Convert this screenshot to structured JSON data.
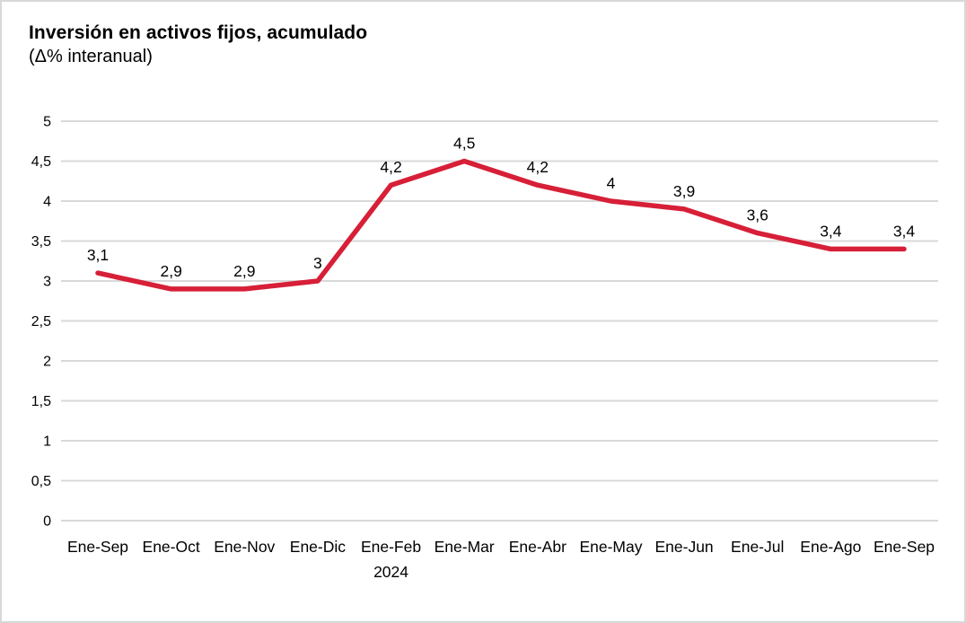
{
  "page": {
    "background_color": "#ffffff",
    "frame_border_color": "#d8d8d8"
  },
  "chart_data": {
    "type": "line",
    "title": "Inversión en activos fijos, acumulado",
    "subtitle": "(Δ% interanual)",
    "categories": [
      "Ene-Sep",
      "Ene-Oct",
      "Ene-Nov",
      "Ene-Dic",
      "Ene-Feb",
      "Ene-Mar",
      "Ene-Abr",
      "Ene-May",
      "Ene-Jun",
      "Ene-Jul",
      "Ene-Ago",
      "Ene-Sep"
    ],
    "values": [
      3.1,
      2.9,
      2.9,
      3.0,
      4.2,
      4.5,
      4.2,
      4.0,
      3.9,
      3.6,
      3.4,
      3.4
    ],
    "point_labels": [
      "3,1",
      "2,9",
      "2,9",
      "3",
      "4,2",
      "4,5",
      "4,2",
      "4",
      "3,9",
      "3,6",
      "3,4",
      "3,4"
    ],
    "x_axis_year_label": "2024",
    "year_label_category_index": 4,
    "y_tick_values": [
      0,
      0.5,
      1,
      1.5,
      2,
      2.5,
      3,
      3.5,
      4,
      4.5,
      5
    ],
    "y_tick_labels": [
      "0",
      "0,5",
      "1",
      "1,5",
      "2",
      "2,5",
      "3",
      "3,5",
      "4",
      "4,5",
      "5"
    ],
    "ylim": [
      0,
      5
    ],
    "xlabel": "",
    "ylabel": "",
    "grid": "horizontal",
    "legend_position": "none",
    "line_color": "#d71f37",
    "gridline_color": "#d9d9d9",
    "text_color": "#000000"
  }
}
